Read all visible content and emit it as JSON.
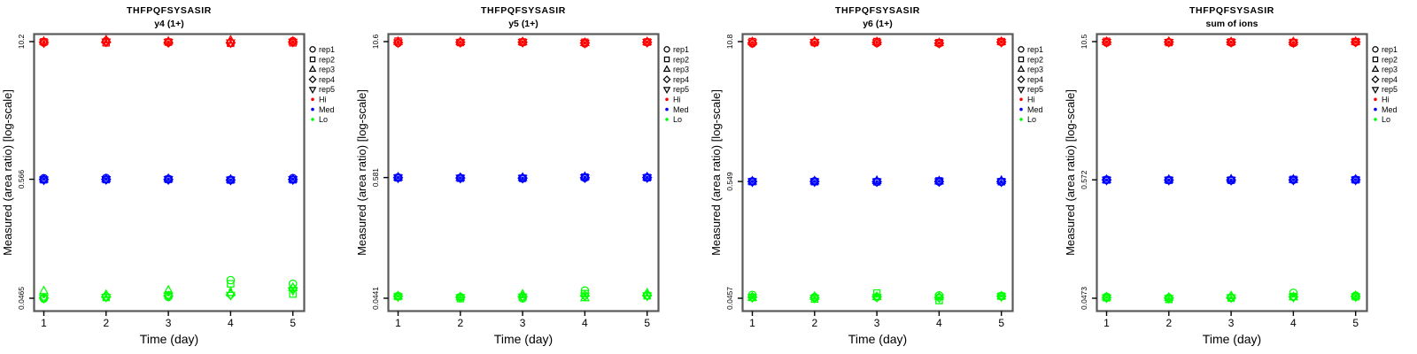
{
  "figure": {
    "background": "#ffffff",
    "peptide": "THFPQFSYSASIR"
  },
  "colors": {
    "hi": "#FF0000",
    "med": "#0000FF",
    "lo": "#00FF00",
    "frame": "#5a5a5a",
    "axis": "#000000",
    "text": "#000000"
  },
  "legend": {
    "items": [
      {
        "label": "rep1",
        "symbol": "circle",
        "color": "#000000"
      },
      {
        "label": "rep2",
        "symbol": "square",
        "color": "#000000"
      },
      {
        "label": "rep3",
        "symbol": "triangle-up",
        "color": "#000000"
      },
      {
        "label": "rep4",
        "symbol": "diamond",
        "color": "#000000"
      },
      {
        "label": "rep5",
        "symbol": "triangle-down",
        "color": "#000000"
      },
      {
        "label": "Hi",
        "symbol": "dot",
        "color": "#FF0000"
      },
      {
        "label": "Med",
        "symbol": "dot",
        "color": "#0000FF"
      },
      {
        "label": "Lo",
        "symbol": "dot",
        "color": "#00FF00"
      }
    ]
  },
  "rep_symbols": {
    "rep1": "circle",
    "rep2": "square",
    "rep3": "triangle-up",
    "rep4": "diamond",
    "rep5": "triangle-down"
  },
  "chart_data": [
    {
      "type": "scatter",
      "title": "THFPQFSYSASIR",
      "subtitle": "y4 (1+)",
      "xlabel": "Time (day)",
      "ylabel": "Measured (area ratio) [log-scale]",
      "x": [
        1,
        2,
        3,
        4,
        5
      ],
      "x_tick_labels": [
        "1",
        "2",
        "3",
        "4",
        "5"
      ],
      "y_scale": "log",
      "y_ticks": [
        {
          "value": 10.2,
          "label": "10.2"
        },
        {
          "value": 0.566,
          "label": "0.566"
        },
        {
          "value": 0.0465,
          "label": "0.0465"
        }
      ],
      "series": [
        {
          "name": "Hi",
          "color": "#FF0000",
          "reps": {
            "rep1": [
              10.0,
              10.3,
              10.05,
              9.9,
              10.3
            ],
            "rep2": [
              10.15,
              9.95,
              10.1,
              9.85,
              9.95
            ],
            "rep3": [
              10.2,
              10.5,
              10.2,
              10.45,
              10.2
            ],
            "rep4": [
              10.05,
              10.1,
              10.0,
              10.0,
              10.1
            ],
            "rep5": [
              10.0,
              10.2,
              10.1,
              10.0,
              10.15
            ]
          }
        },
        {
          "name": "Med",
          "color": "#0000FF",
          "reps": {
            "rep1": [
              0.578,
              0.581,
              0.57,
              0.561,
              0.579
            ],
            "rep2": [
              0.56,
              0.562,
              0.565,
              0.557,
              0.56
            ],
            "rep3": [
              0.564,
              0.568,
              0.571,
              0.562,
              0.566
            ],
            "rep4": [
              0.562,
              0.564,
              0.563,
              0.558,
              0.563
            ],
            "rep5": [
              0.561,
              0.566,
              0.566,
              0.56,
              0.565
            ]
          }
        },
        {
          "name": "Lo",
          "color": "#00FF00",
          "reps": {
            "rep1": [
              0.0462,
              0.0482,
              0.0478,
              0.068,
              0.063
            ],
            "rep2": [
              0.0478,
              0.0473,
              0.0498,
              0.063,
              0.0508
            ],
            "rep3": [
              0.054,
              0.05,
              0.0548,
              0.052,
              0.0578
            ],
            "rep4": [
              0.0468,
              0.048,
              0.049,
              0.05,
              0.0575
            ],
            "rep5": [
              0.0466,
              0.0478,
              0.0488,
              0.0498,
              0.055
            ]
          }
        }
      ]
    },
    {
      "type": "scatter",
      "title": "THFPQFSYSASIR",
      "subtitle": "y5 (1+)",
      "xlabel": "Time (day)",
      "ylabel": "Measured (area ratio) [log-scale]",
      "x": [
        1,
        2,
        3,
        4,
        5
      ],
      "x_tick_labels": [
        "1",
        "2",
        "3",
        "4",
        "5"
      ],
      "y_scale": "log",
      "y_ticks": [
        {
          "value": 10.6,
          "label": "10.6"
        },
        {
          "value": 0.581,
          "label": "0.581"
        },
        {
          "value": 0.0441,
          "label": "0.0441"
        }
      ],
      "series": [
        {
          "name": "Hi",
          "color": "#FF0000",
          "reps": {
            "rep1": [
              10.3,
              10.4,
              10.45,
              10.2,
              10.45
            ],
            "rep2": [
              10.7,
              10.4,
              10.5,
              10.45,
              10.5
            ],
            "rep3": [
              10.55,
              10.5,
              10.5,
              10.3,
              10.5
            ],
            "rep4": [
              10.4,
              10.45,
              10.45,
              10.3,
              10.45
            ],
            "rep5": [
              10.4,
              10.45,
              10.5,
              10.3,
              10.5
            ]
          }
        },
        {
          "name": "Med",
          "color": "#0000FF",
          "reps": {
            "rep1": [
              0.581,
              0.576,
              0.57,
              0.578,
              0.582
            ],
            "rep2": [
              0.578,
              0.573,
              0.572,
              0.586,
              0.58
            ],
            "rep3": [
              0.583,
              0.578,
              0.578,
              0.589,
              0.585
            ],
            "rep4": [
              0.58,
              0.575,
              0.574,
              0.58,
              0.581
            ],
            "rep5": [
              0.58,
              0.576,
              0.575,
              0.582,
              0.582
            ]
          }
        },
        {
          "name": "Lo",
          "color": "#00FF00",
          "reps": {
            "rep1": [
              0.0462,
              0.0452,
              0.044,
              0.052,
              0.047
            ],
            "rep2": [
              0.0458,
              0.0438,
              0.0452,
              0.0487,
              0.0465
            ],
            "rep3": [
              0.046,
              0.0452,
              0.0478,
              0.0442,
              0.049
            ],
            "rep4": [
              0.046,
              0.045,
              0.0456,
              0.0466,
              0.0468
            ],
            "rep5": [
              0.0458,
              0.045,
              0.0455,
              0.0465,
              0.0466
            ]
          }
        }
      ]
    },
    {
      "type": "scatter",
      "title": "THFPQFSYSASIR",
      "subtitle": "y6 (1+)",
      "xlabel": "Time (day)",
      "ylabel": "Measured (area ratio) [log-scale]",
      "x": [
        1,
        2,
        3,
        4,
        5
      ],
      "x_tick_labels": [
        "1",
        "2",
        "3",
        "4",
        "5"
      ],
      "y_scale": "log",
      "y_ticks": [
        {
          "value": 10.8,
          "label": "10.8"
        },
        {
          "value": 0.549,
          "label": "0.549"
        },
        {
          "value": 0.0457,
          "label": "0.0457"
        }
      ],
      "series": [
        {
          "name": "Hi",
          "color": "#FF0000",
          "reps": {
            "rep1": [
              10.4,
              10.6,
              10.5,
              10.4,
              10.7
            ],
            "rep2": [
              10.8,
              10.6,
              10.8,
              10.55,
              10.8
            ],
            "rep3": [
              10.7,
              10.8,
              10.7,
              10.5,
              10.75
            ],
            "rep4": [
              10.5,
              10.65,
              10.6,
              10.45,
              10.7
            ],
            "rep5": [
              10.6,
              10.7,
              10.6,
              10.5,
              10.7
            ]
          }
        },
        {
          "name": "Med",
          "color": "#0000FF",
          "reps": {
            "rep1": [
              0.551,
              0.552,
              0.545,
              0.548,
              0.546
            ],
            "rep2": [
              0.548,
              0.547,
              0.546,
              0.556,
              0.547
            ],
            "rep3": [
              0.55,
              0.552,
              0.556,
              0.552,
              0.558
            ],
            "rep4": [
              0.549,
              0.549,
              0.547,
              0.549,
              0.548
            ],
            "rep5": [
              0.549,
              0.55,
              0.548,
              0.55,
              0.548
            ]
          }
        },
        {
          "name": "Lo",
          "color": "#00FF00",
          "reps": {
            "rep1": [
              0.049,
              0.0468,
              0.0468,
              0.0485,
              0.048
            ],
            "rep2": [
              0.0465,
              0.045,
              0.051,
              0.0435,
              0.0478
            ],
            "rep3": [
              0.0462,
              0.0472,
              0.047,
              0.047,
              0.0476
            ],
            "rep4": [
              0.0468,
              0.046,
              0.0471,
              0.0465,
              0.0477
            ],
            "rep5": [
              0.0466,
              0.046,
              0.0469,
              0.0464,
              0.0476
            ]
          }
        }
      ]
    },
    {
      "type": "scatter",
      "title": "THFPQFSYSASIR",
      "subtitle": "sum of ions",
      "xlabel": "Time (day)",
      "ylabel": "Measured (area ratio) [log-scale]",
      "x": [
        1,
        2,
        3,
        4,
        5
      ],
      "x_tick_labels": [
        "1",
        "2",
        "3",
        "4",
        "5"
      ],
      "y_scale": "log",
      "y_ticks": [
        {
          "value": 10.5,
          "label": "10.5"
        },
        {
          "value": 0.572,
          "label": "0.572"
        },
        {
          "value": 0.0473,
          "label": "0.0473"
        }
      ],
      "series": [
        {
          "name": "Hi",
          "color": "#FF0000",
          "reps": {
            "rep1": [
              10.3,
              10.35,
              10.3,
              10.2,
              10.4
            ],
            "rep2": [
              10.55,
              10.3,
              10.4,
              10.3,
              10.5
            ],
            "rep3": [
              10.45,
              10.45,
              10.4,
              10.4,
              10.45
            ],
            "rep4": [
              10.35,
              10.4,
              10.35,
              10.3,
              10.4
            ],
            "rep5": [
              10.4,
              10.4,
              10.4,
              10.3,
              10.45
            ]
          }
        },
        {
          "name": "Med",
          "color": "#0000FF",
          "reps": {
            "rep1": [
              0.574,
              0.57,
              0.566,
              0.572,
              0.574
            ],
            "rep2": [
              0.57,
              0.568,
              0.568,
              0.576,
              0.572
            ],
            "rep3": [
              0.572,
              0.573,
              0.577,
              0.575,
              0.576
            ],
            "rep4": [
              0.571,
              0.57,
              0.57,
              0.572,
              0.573
            ],
            "rep5": [
              0.571,
              0.571,
              0.57,
              0.573,
              0.573
            ]
          }
        },
        {
          "name": "Lo",
          "color": "#00FF00",
          "reps": {
            "rep1": [
              0.0487,
              0.0478,
              0.0482,
              0.053,
              0.05
            ],
            "rep2": [
              0.0478,
              0.0462,
              0.0476,
              0.049,
              0.0488
            ],
            "rep3": [
              0.0483,
              0.048,
              0.0495,
              0.0484,
              0.0497
            ],
            "rep4": [
              0.048,
              0.0475,
              0.0481,
              0.0486,
              0.0492
            ],
            "rep5": [
              0.0479,
              0.0474,
              0.048,
              0.0485,
              0.0491
            ]
          }
        }
      ]
    }
  ]
}
